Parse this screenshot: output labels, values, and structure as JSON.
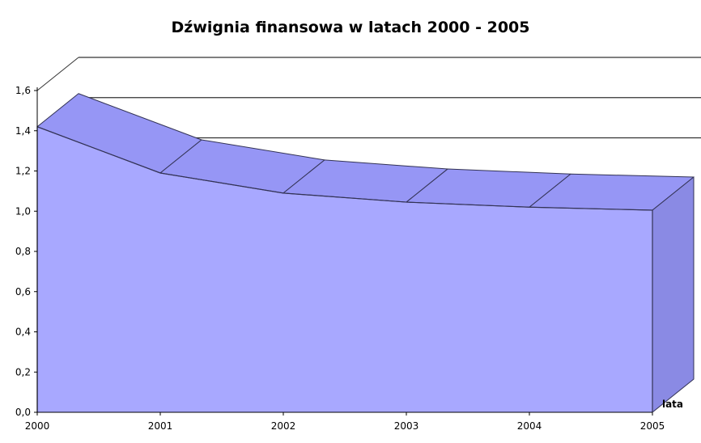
{
  "chart_data": {
    "type": "area",
    "title": "Dźwignia finansowa w latach 2000 - 2005",
    "xlabel": "lata",
    "ylabel": "",
    "categories": [
      "2000",
      "2001",
      "2002",
      "2003",
      "2004",
      "2005"
    ],
    "series": [
      {
        "values": [
          1.42,
          1.19,
          1.09,
          1.045,
          1.02,
          1.005
        ]
      }
    ],
    "ylim": [
      0,
      1.6
    ],
    "yticks": [
      "0,0",
      "0,2",
      "0,4",
      "0,6",
      "0,8",
      "1,0",
      "1,2",
      "1,4",
      "1,6"
    ],
    "grid": true,
    "legend": "none",
    "three_d": true,
    "colors": {
      "front": "#a8a8ff",
      "top": "#9696f5",
      "side": "#8a8ae4",
      "edge": "#333355",
      "grid": "#333333"
    }
  }
}
